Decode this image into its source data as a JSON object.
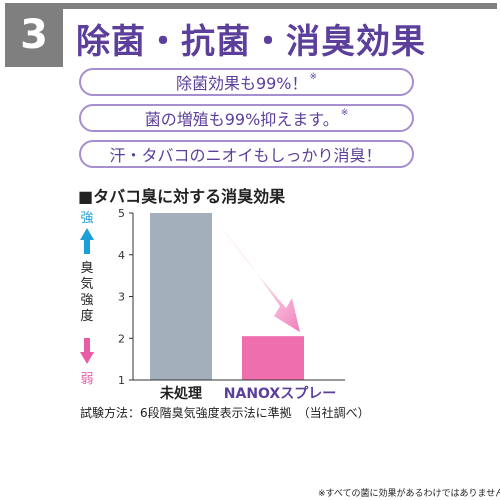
{
  "section_number": "3",
  "title": "除菌・抗菌・消臭効果",
  "claims": [
    {
      "text": "除菌効果も99%！",
      "mark": "※"
    },
    {
      "text": "菌の増殖も99%抑えます。",
      "mark": "※"
    },
    {
      "text": "汗・タバコのニオイもしっかり消臭！",
      "mark": ""
    }
  ],
  "chart_title": "■タバコ臭に対する消臭効果",
  "test_method": "試験方法：6段階臭気強度表示法に準拠　（当社調べ）",
  "footnote": "※すべての菌に効果があるわけではありません。",
  "colors": {
    "header_gray": "#7f7f80",
    "title_purple": "#5b3f9b",
    "pill_border": "#a58fcf",
    "strong_blue": "#1a9fd9",
    "weak_pink": "#e85ca3"
  },
  "chart_data": {
    "type": "bar",
    "title": "■タバコ臭に対する消臭効果",
    "categories": [
      "未処理",
      "NANOXスプレー"
    ],
    "values": [
      5,
      2.05
    ],
    "bar_colors": [
      "#a3afba",
      "#ef6eae"
    ],
    "ylim": [
      1,
      5
    ],
    "yticks": [
      "1",
      "2",
      "3",
      "4",
      "5"
    ],
    "ylabel": "臭気強度",
    "y_top_label": "強",
    "y_bottom_label": "弱",
    "grid": false
  }
}
